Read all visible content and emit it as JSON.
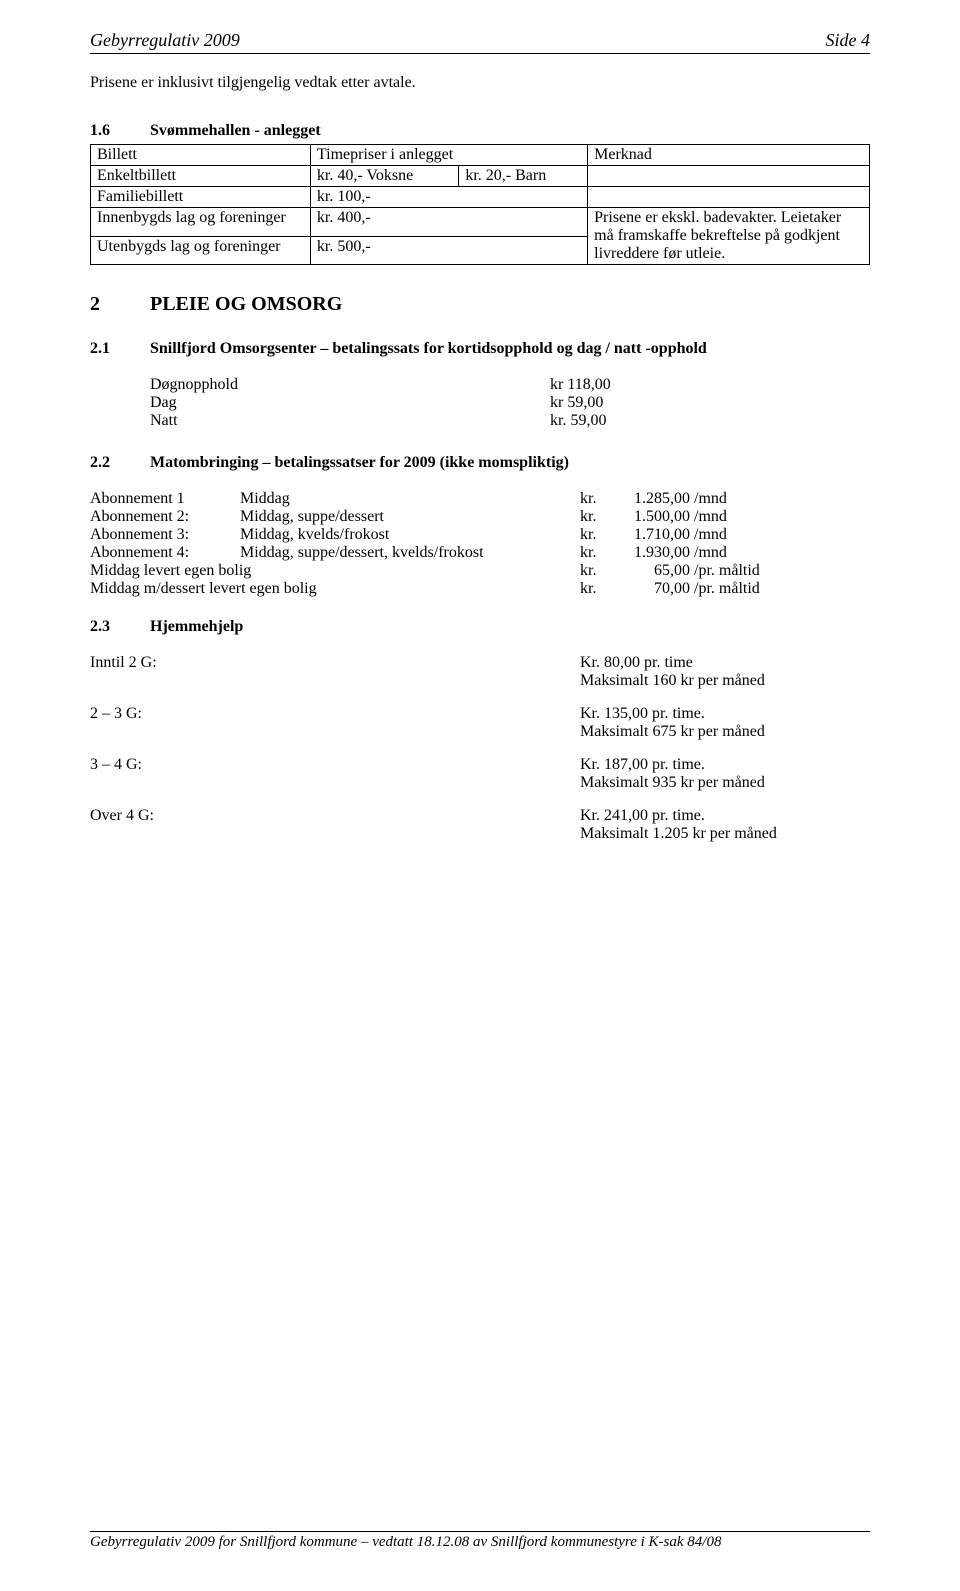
{
  "header": {
    "left": "Gebyrregulativ 2009",
    "right": "Side 4"
  },
  "intro": "Prisene er inklusivt tilgjengelig vedtak etter avtale.",
  "sec16": {
    "num": "1.6",
    "title": "Svømmehallen - anlegget",
    "table": {
      "head": [
        "Billett",
        "Timepriser i anlegget",
        "Merknad"
      ],
      "rows": [
        {
          "c1": "Enkeltbillett",
          "c2a": "kr. 40,-  Voksne",
          "c2b": "kr. 20,-  Barn",
          "c3": "",
          "split": true
        },
        {
          "c1": "Familiebillett",
          "c2": "kr. 100,-",
          "c3": ""
        },
        {
          "c1": "Innenbygds lag og foreninger",
          "c2": "kr. 400,-"
        },
        {
          "c1": "Utenbygds lag og foreninger",
          "c2": "kr. 500,-"
        }
      ],
      "merknad_block": "Prisene er ekskl. badevakter. Leietaker må framskaffe bekreftelse på godkjent livreddere før utleie."
    }
  },
  "sec2": {
    "num": "2",
    "title": "PLEIE OG OMSORG"
  },
  "sec21": {
    "num": "2.1",
    "title": "Snillfjord Omsorgsenter – betalingssats for kortidsopphold og dag / natt -opphold",
    "rows": [
      {
        "k": "Døgnopphold",
        "v": "kr 118,00"
      },
      {
        "k": "Dag",
        "v": "kr   59,00"
      },
      {
        "k": "Natt",
        "v": "kr.  59,00"
      }
    ]
  },
  "sec22": {
    "num": "2.2",
    "title": "Matombringing – betalingssatser for 2009 (ikke momspliktig)",
    "rows": [
      {
        "c1": "Abonnement 1",
        "c2": "Middag",
        "kr": "kr.",
        "amt": "1.285,00",
        "suf": " /mnd"
      },
      {
        "c1": "Abonnement 2:",
        "c2": "Middag, suppe/dessert",
        "kr": "kr.",
        "amt": "1.500,00",
        "suf": " /mnd"
      },
      {
        "c1": "Abonnement 3:",
        "c2": "Middag, kvelds/frokost",
        "kr": "kr.",
        "amt": "1.710,00",
        "suf": " /mnd"
      },
      {
        "c1": "Abonnement 4:",
        "c2": "Middag, suppe/dessert, kvelds/frokost",
        "kr": "kr.",
        "amt": "1.930,00",
        "suf": " /mnd"
      },
      {
        "c1": "Middag levert egen bolig",
        "c2": "",
        "kr": "kr.",
        "amt": "65,00",
        "suf": " /pr. måltid",
        "wide": true
      },
      {
        "c1": "Middag m/dessert levert egen bolig",
        "c2": "",
        "kr": "kr.",
        "amt": "70,00",
        "suf": " /pr. måltid",
        "wide": true
      }
    ]
  },
  "sec23": {
    "num": "2.3",
    "title": "Hjemmehjelp",
    "rows": [
      {
        "c1": "Inntil 2 G:",
        "l1": "Kr.  80,00 pr. time",
        "l2": "Maksimalt 160 kr per måned"
      },
      {
        "c1": "2 – 3 G:",
        "l1": "Kr. 135,00 pr. time.",
        "l2": "Maksimalt 675 kr per måned"
      },
      {
        "c1": "3 – 4 G:",
        "l1": "Kr. 187,00 pr. time.",
        "l2": "Maksimalt 935 kr per måned"
      },
      {
        "c1": "Over 4 G:",
        "l1": "Kr. 241,00 pr. time.",
        "l2": "Maksimalt 1.205 kr per måned"
      }
    ]
  },
  "footer": "Gebyrregulativ 2009 for Snillfjord kommune – vedtatt 18.12.08 av Snillfjord kommunestyre i K-sak 84/08"
}
